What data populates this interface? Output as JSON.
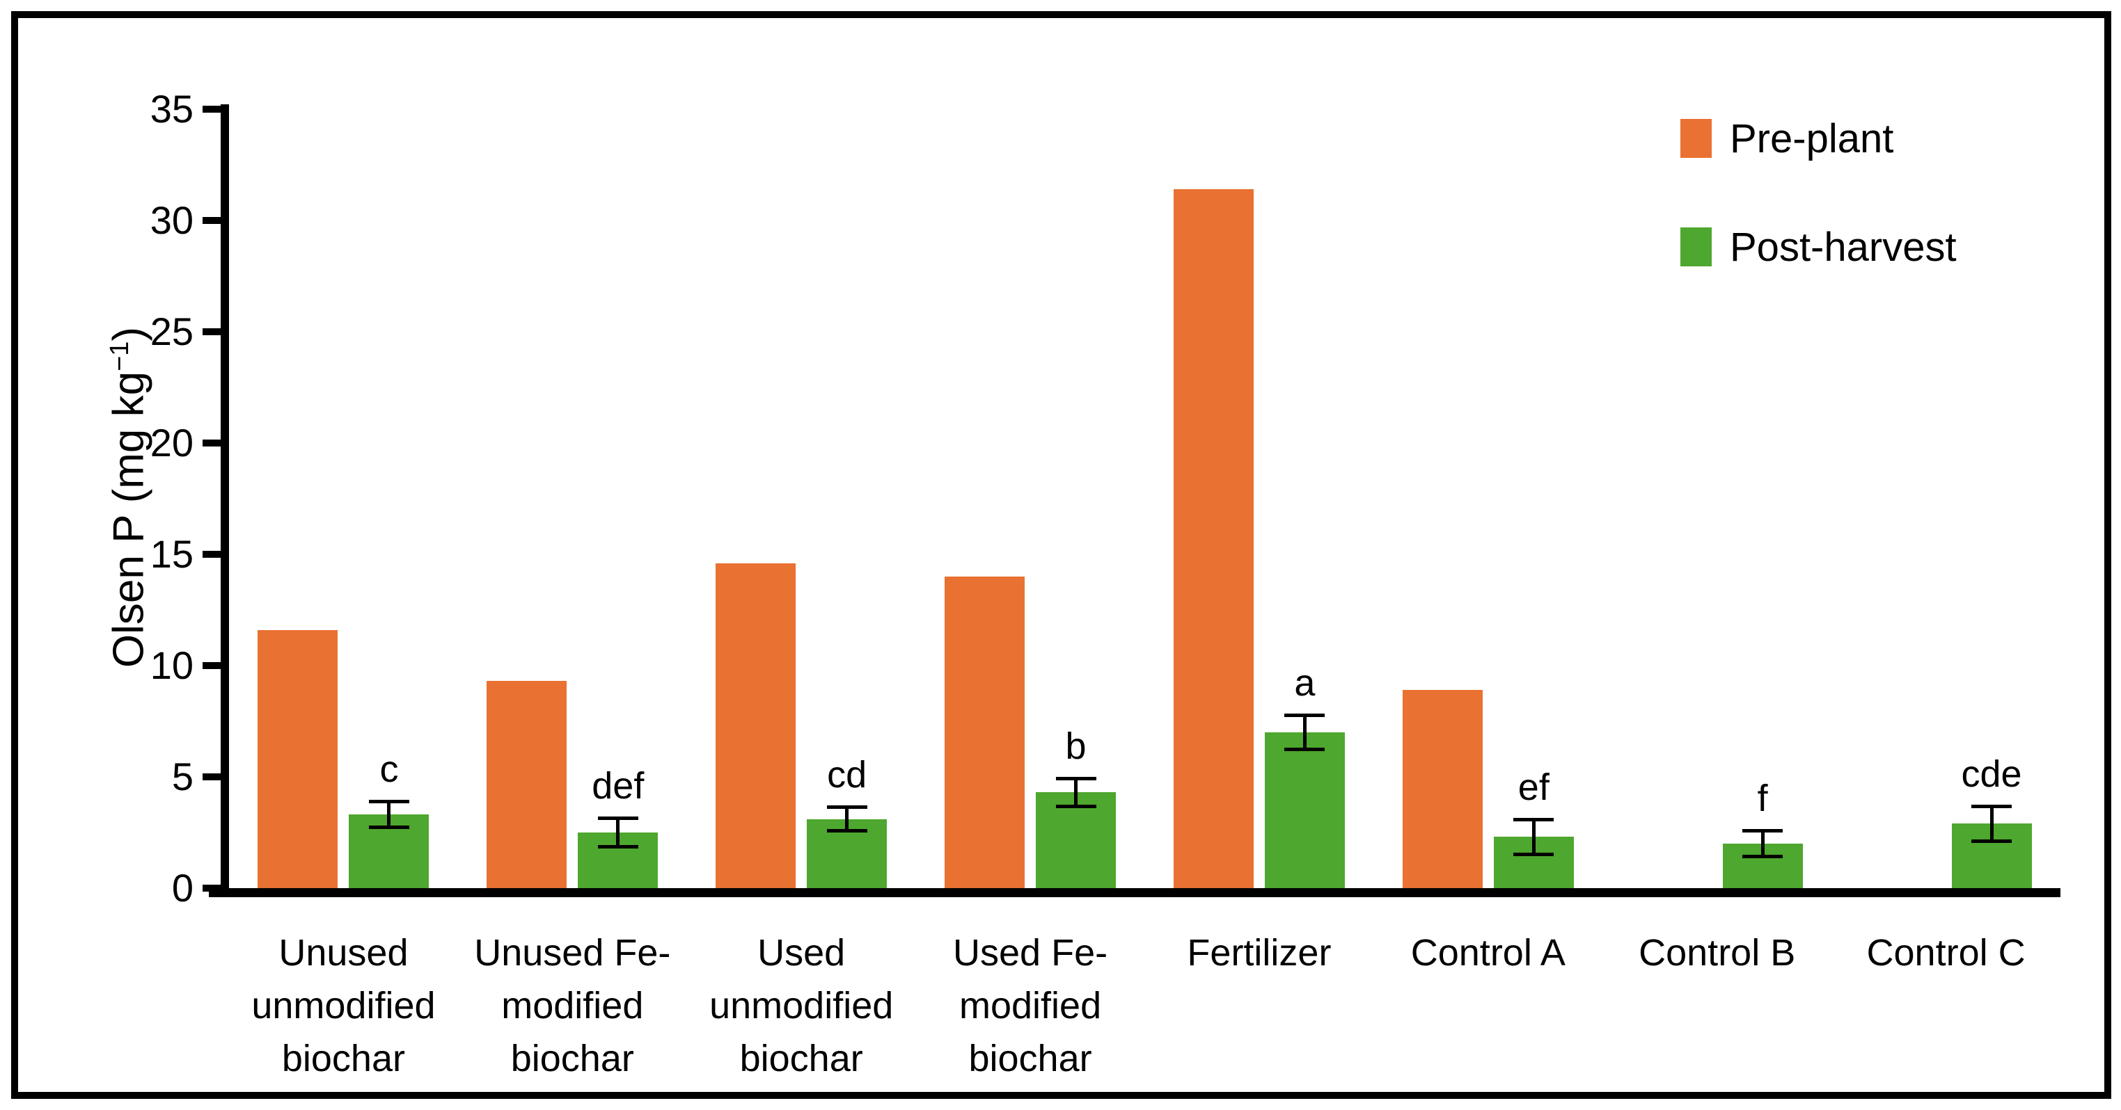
{
  "chart_data": {
    "type": "bar",
    "title": "",
    "xlabel": "",
    "ylabel": "Olsen P (mg kg⁻¹)",
    "ylabel_parts": {
      "prefix": "Olsen P (mg kg",
      "sup": "−1",
      "suffix": ")"
    },
    "ylim": [
      0,
      35
    ],
    "yticks": [
      0,
      5,
      10,
      15,
      20,
      25,
      30,
      35
    ],
    "grid": false,
    "legend_position": "top-right",
    "categories": [
      {
        "label": "Unused unmodified biochar",
        "lines": [
          "Unused",
          "unmodified",
          "biochar"
        ]
      },
      {
        "label": "Unused Fe-modified biochar",
        "lines": [
          "Unused Fe-",
          "modified",
          "biochar"
        ]
      },
      {
        "label": "Used unmodified biochar",
        "lines": [
          "Used",
          "unmodified",
          "biochar"
        ]
      },
      {
        "label": "Used Fe-modified biochar",
        "lines": [
          "Used Fe-",
          "modified",
          "biochar"
        ]
      },
      {
        "label": "Fertilizer",
        "lines": [
          "Fertilizer"
        ]
      },
      {
        "label": "Control A",
        "lines": [
          "Control A"
        ]
      },
      {
        "label": "Control B",
        "lines": [
          "Control B"
        ]
      },
      {
        "label": "Control C",
        "lines": [
          "Control C"
        ]
      }
    ],
    "series": [
      {
        "name": "Pre-plant",
        "color": "#E97132",
        "values": [
          11.6,
          9.3,
          14.6,
          14.0,
          31.4,
          8.9,
          null,
          null
        ]
      },
      {
        "name": "Post-harvest",
        "color": "#4EA72E",
        "values": [
          3.3,
          2.5,
          3.1,
          4.3,
          7.0,
          2.3,
          2.0,
          2.9
        ],
        "errors": [
          0.5,
          0.55,
          0.45,
          0.55,
          0.7,
          0.7,
          0.5,
          0.7
        ],
        "sig_letters": [
          "c",
          "def",
          "cd",
          "b",
          "a",
          "ef",
          "f",
          "cde"
        ]
      }
    ]
  },
  "colors": {
    "axis": "#000000",
    "background": "#FFFFFF",
    "pre_plant": "#E97132",
    "post_harvest": "#4EA72E"
  }
}
